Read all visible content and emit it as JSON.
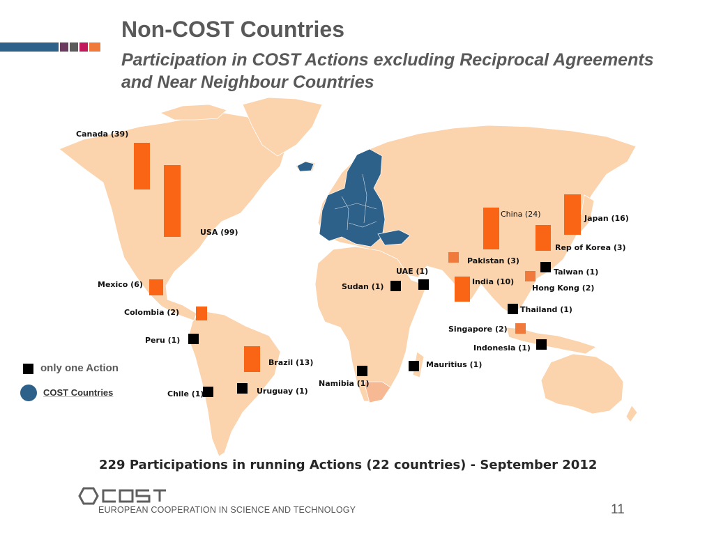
{
  "header": {
    "title": "Non-COST Countries",
    "subtitle": "Participation in COST Actions excluding Reciprocal Agreements and Near Neighbour Countries"
  },
  "colors": {
    "land": "#fbd3ad",
    "cost_countries": "#2e6189",
    "bar": "#fa6415",
    "bar_light": "#f07a3c",
    "single": "#000000"
  },
  "countries": [
    {
      "label": "Canada (39)",
      "participations": 39
    },
    {
      "label": "USA (99)",
      "participations": 99
    },
    {
      "label": "Mexico (6)",
      "participations": 6
    },
    {
      "label": "Colombia (2)",
      "participations": 2
    },
    {
      "label": "Peru (1)",
      "participations": 1
    },
    {
      "label": "Brazil (13)",
      "participations": 13
    },
    {
      "label": "Chile (1)",
      "participations": 1
    },
    {
      "label": "Uruguay (1)",
      "participations": 1
    },
    {
      "label": "Namibia (1)",
      "participations": 1
    },
    {
      "label": "Mauritius (1)",
      "participations": 1
    },
    {
      "label": "Sudan (1)",
      "participations": 1
    },
    {
      "label": "UAE (1)",
      "participations": 1
    },
    {
      "label": "Pakistan (3)",
      "participations": 3
    },
    {
      "label": "India (10)",
      "participations": 10
    },
    {
      "label": "China (24)",
      "participations": 24
    },
    {
      "label": "Japan (16)",
      "participations": 16
    },
    {
      "label": "Rep of Korea (3)",
      "participations": 3
    },
    {
      "label": "Taiwan (1)",
      "participations": 1
    },
    {
      "label": "Hong Kong (2)",
      "participations": 2
    },
    {
      "label": "Thailand (1)",
      "participations": 1
    },
    {
      "label": "Singapore (2)",
      "participations": 2
    },
    {
      "label": "Indonesia (1)",
      "participations": 1
    }
  ],
  "legend": {
    "single_label": "only one Action",
    "cost_label": "COST Countries"
  },
  "footer": {
    "summary": "229 Participations in running Actions (22 countries) - September 2012",
    "tagline": "EUROPEAN COOPERATION IN SCIENCE AND TECHNOLOGY",
    "page_number": "11"
  }
}
